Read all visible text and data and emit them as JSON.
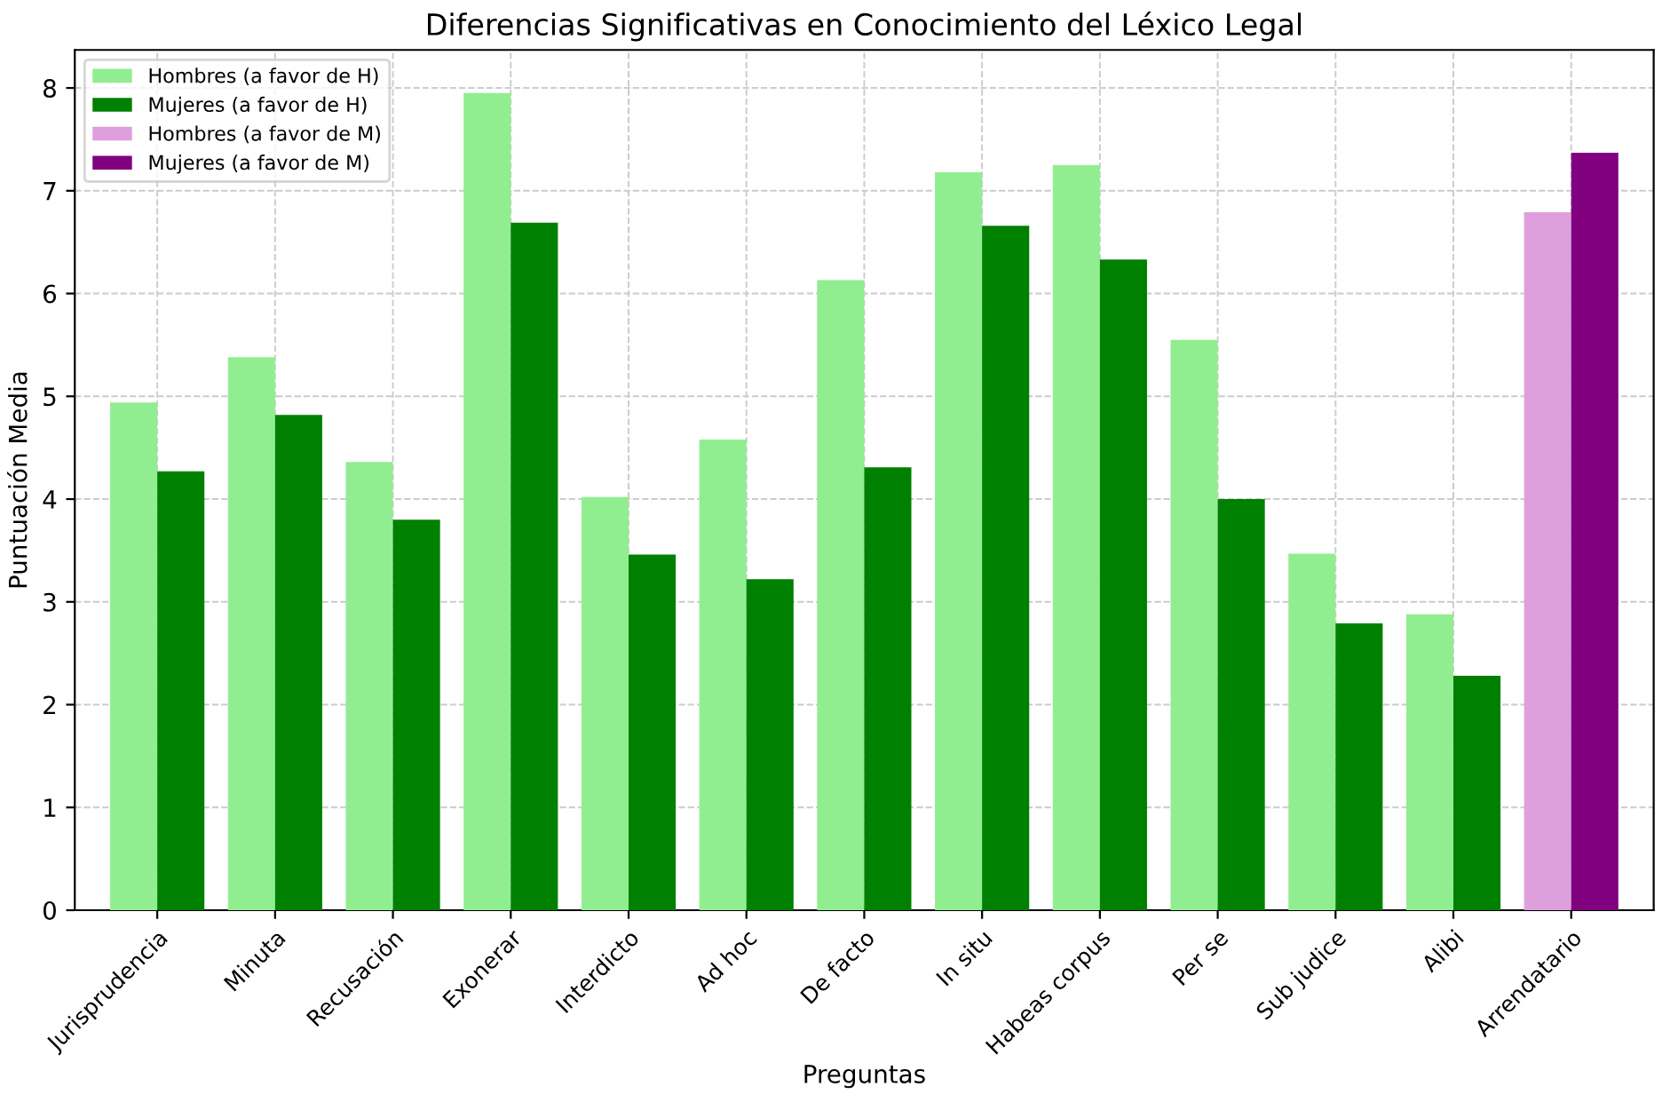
{
  "chart_data": {
    "type": "bar",
    "title": "Diferencias Significativas en Conocimiento del Léxico Legal",
    "xlabel": "Preguntas",
    "ylabel": "Puntuación Media",
    "categories": [
      "Jurisprudencia",
      "Minuta",
      "Recusación",
      "Exonerar",
      "Interdicto",
      "Ad hoc",
      "De facto",
      "In situ",
      "Habeas corpus",
      "Per se",
      "Sub judice",
      "Alibi",
      "Arrendatario"
    ],
    "series": [
      {
        "name": "Hombres (a favor de H)",
        "color": "#90ee90",
        "values": [
          4.94,
          5.38,
          4.36,
          7.95,
          4.02,
          4.58,
          6.13,
          7.18,
          7.25,
          5.55,
          3.47,
          2.88,
          null
        ]
      },
      {
        "name": "Mujeres (a favor de H)",
        "color": "#008000",
        "values": [
          4.27,
          4.82,
          3.8,
          6.69,
          3.46,
          3.22,
          4.31,
          6.66,
          6.33,
          4.0,
          2.79,
          2.28,
          null
        ]
      },
      {
        "name": "Hombres (a favor de M)",
        "color": "#dda0dd",
        "values": [
          null,
          null,
          null,
          null,
          null,
          null,
          null,
          null,
          null,
          null,
          null,
          null,
          6.79
        ]
      },
      {
        "name": "Mujeres (a favor de M)",
        "color": "#800080",
        "values": [
          null,
          null,
          null,
          null,
          null,
          null,
          null,
          null,
          null,
          null,
          null,
          null,
          7.37
        ]
      }
    ],
    "ylim": [
      0,
      8.37
    ],
    "yticks": [
      0,
      1,
      2,
      3,
      4,
      5,
      6,
      7,
      8
    ],
    "grid": true,
    "legend": "top left"
  }
}
